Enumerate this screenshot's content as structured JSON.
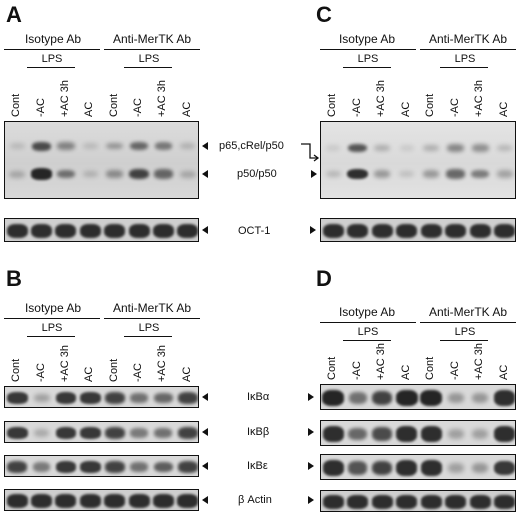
{
  "panels": [
    {
      "letter": "A",
      "groups": [
        "Isotype Ab",
        "Anti-MerTK Ab"
      ],
      "lps_label": "LPS",
      "lanes": [
        "Cont",
        "-AC",
        "+AC 3h",
        "AC",
        "Cont",
        "-AC",
        "+AC 3h",
        "AC"
      ],
      "blots": [
        {
          "type": "gel",
          "bands": [
            {
              "row": "upper",
              "levels": [
                0.15,
                0.75,
                0.45,
                0.15,
                0.35,
                0.6,
                0.5,
                0.2
              ]
            },
            {
              "row": "lower",
              "levels": [
                0.25,
                0.95,
                0.55,
                0.2,
                0.4,
                0.8,
                0.6,
                0.25
              ]
            }
          ]
        },
        {
          "type": "strip",
          "bands": [
            {
              "row": "single",
              "levels": [
                0.9,
                0.9,
                0.9,
                0.9,
                0.9,
                0.9,
                0.9,
                0.9
              ]
            }
          ]
        }
      ]
    },
    {
      "letter": "C",
      "groups": [
        "Isotype Ab",
        "Anti-MerTK Ab"
      ],
      "lps_label": "LPS",
      "lanes": [
        "Cont",
        "-AC",
        "+AC 3h",
        "AC",
        "Cont",
        "-AC",
        "+AC 3h",
        "AC"
      ],
      "blots": [
        {
          "type": "gel",
          "bands": [
            {
              "row": "upper",
              "levels": [
                0.1,
                0.7,
                0.25,
                0.1,
                0.25,
                0.45,
                0.4,
                0.2
              ]
            },
            {
              "row": "lower",
              "levels": [
                0.2,
                0.9,
                0.35,
                0.15,
                0.35,
                0.6,
                0.5,
                0.3
              ]
            }
          ]
        },
        {
          "type": "strip",
          "bands": [
            {
              "row": "single",
              "levels": [
                0.9,
                0.9,
                0.9,
                0.9,
                0.9,
                0.9,
                0.9,
                0.9
              ]
            }
          ]
        }
      ]
    },
    {
      "letter": "B",
      "groups": [
        "Isotype Ab",
        "Anti-MerTK Ab"
      ],
      "lps_label": "LPS",
      "lanes": [
        "Cont",
        "-AC",
        "+AC 3h",
        "AC",
        "Cont",
        "-AC",
        "+AC 3h",
        "AC"
      ],
      "blots": [
        {
          "type": "strip",
          "bands": [
            {
              "row": "single",
              "levels": [
                0.85,
                0.3,
                0.85,
                0.85,
                0.8,
                0.55,
                0.6,
                0.8
              ]
            }
          ]
        },
        {
          "type": "strip",
          "bands": [
            {
              "row": "single",
              "levels": [
                0.85,
                0.25,
                0.85,
                0.85,
                0.8,
                0.5,
                0.55,
                0.8
              ]
            }
          ]
        },
        {
          "type": "strip",
          "bands": [
            {
              "row": "single",
              "levels": [
                0.8,
                0.5,
                0.85,
                0.85,
                0.8,
                0.55,
                0.65,
                0.8
              ]
            }
          ]
        },
        {
          "type": "strip",
          "bands": [
            {
              "row": "single",
              "levels": [
                0.9,
                0.9,
                0.9,
                0.9,
                0.9,
                0.9,
                0.9,
                0.9
              ]
            }
          ]
        }
      ]
    },
    {
      "letter": "D",
      "groups": [
        "Isotype Ab",
        "Anti-MerTK Ab"
      ],
      "lps_label": "LPS",
      "lanes": [
        "Cont",
        "-AC",
        "+AC 3h",
        "AC",
        "Cont",
        "-AC",
        "+AC 3h",
        "AC"
      ],
      "blots": [
        {
          "type": "strip",
          "bands": [
            {
              "row": "single",
              "levels": [
                0.95,
                0.55,
                0.8,
                0.95,
                0.95,
                0.35,
                0.35,
                0.9
              ]
            }
          ]
        },
        {
          "type": "strip",
          "bands": [
            {
              "row": "single",
              "levels": [
                0.9,
                0.6,
                0.75,
                0.9,
                0.9,
                0.3,
                0.3,
                0.9
              ]
            }
          ]
        },
        {
          "type": "strip",
          "bands": [
            {
              "row": "single",
              "levels": [
                0.9,
                0.7,
                0.8,
                0.9,
                0.9,
                0.3,
                0.35,
                0.85
              ]
            }
          ]
        },
        {
          "type": "strip",
          "bands": [
            {
              "row": "single",
              "levels": [
                0.9,
                0.9,
                0.9,
                0.9,
                0.9,
                0.9,
                0.9,
                0.9
              ]
            }
          ]
        }
      ]
    }
  ],
  "markers": {
    "p65_crel_p50": "p65,cRel/p50",
    "p50_p50": "p50/p50",
    "oct1": "OCT-1",
    "ikba": "IκBα",
    "ikbb": "IκBβ",
    "ikbe": "IκBε",
    "beta_actin": "β Actin"
  },
  "colors": {
    "ink": "#111111",
    "band": "#1c1c1c",
    "background": "#ffffff"
  }
}
